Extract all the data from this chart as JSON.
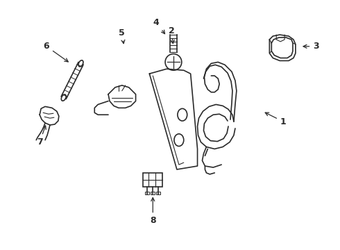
{
  "background_color": "#ffffff",
  "line_color": "#2a2a2a",
  "line_width": 1.2,
  "label_fontsize": 9
}
